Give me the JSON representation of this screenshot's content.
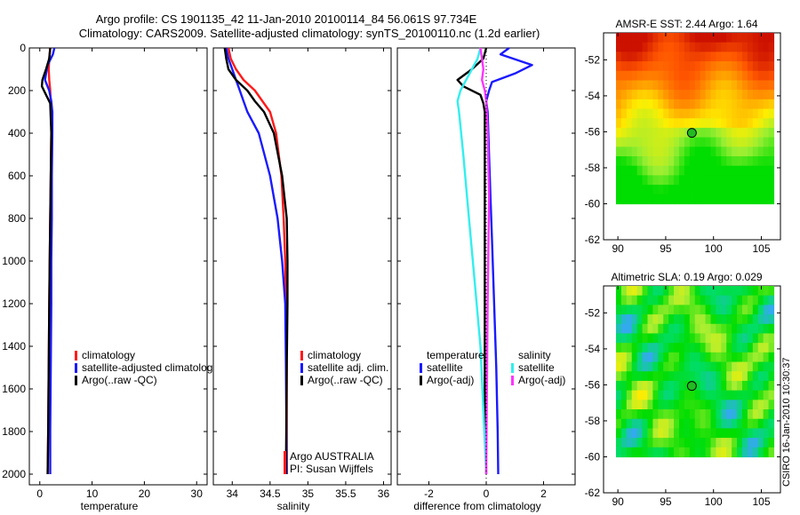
{
  "figure": {
    "title_line1": "Argo profile: CS 1901135_42 11-Jan-2010 20100114_84 56.061S 97.734E",
    "title_line2": "Climatology: CARS2009. Satellite-adjusted climatology: synTS_20100110.nc (1.2d earlier)",
    "side_stamp": "CSIRO 16-Jan-2010 10:30:37",
    "argo_credit_line1": "Argo AUSTRALIA",
    "argo_credit_line2": "PI: Susan Wijffels"
  },
  "colors": {
    "climatology": "#ff1a1a",
    "satellite_adjusted": "#1a1aff",
    "argo": "#000000",
    "salinity_satellite": "#33eeee",
    "salinity_argo": "#ff33ff"
  },
  "chart_data": [
    {
      "type": "line",
      "panel": "temperature",
      "xlabel": "temperature",
      "ylabel": "",
      "xlim": [
        -2,
        32
      ],
      "ylim": [
        2050,
        0
      ],
      "xticks": [
        0,
        10,
        20,
        30
      ],
      "yticks": [
        0,
        200,
        400,
        600,
        800,
        1000,
        1200,
        1400,
        1600,
        1800,
        2000
      ],
      "legend": {
        "placement": "lower-middle",
        "entries": [
          "climatology",
          "satellite-adjusted climatolog",
          "Argo(..raw -QC)"
        ]
      },
      "series": [
        {
          "name": "climatology",
          "color": "#ff1a1a",
          "x": [
            2.0,
            1.8,
            1.7,
            1.8,
            2.0,
            2.1,
            2.2,
            2.2,
            2.1,
            2.0,
            1.9,
            1.8,
            1.7,
            1.6,
            1.5
          ],
          "y": [
            0,
            50,
            100,
            150,
            200,
            250,
            300,
            400,
            600,
            800,
            1000,
            1200,
            1500,
            1800,
            2000
          ]
        },
        {
          "name": "satellite-adjusted climatology",
          "color": "#1a1aff",
          "x": [
            2.8,
            2.5,
            1.5,
            1.0,
            1.8,
            2.2,
            2.4,
            2.4,
            2.3,
            2.3,
            2.2,
            2.2,
            2.1,
            2.0,
            2.0
          ],
          "y": [
            0,
            30,
            80,
            150,
            200,
            250,
            300,
            400,
            600,
            800,
            1000,
            1200,
            1500,
            1800,
            2000
          ]
        },
        {
          "name": "Argo(..raw -QC)",
          "color": "#000000",
          "x": [
            2.0,
            1.8,
            1.2,
            0.5,
            0.4,
            1.2,
            2.0,
            2.2,
            2.1,
            2.0,
            1.9,
            1.8,
            1.7,
            1.6,
            1.5
          ],
          "y": [
            0,
            50,
            100,
            150,
            180,
            220,
            260,
            400,
            600,
            800,
            1000,
            1200,
            1500,
            1800,
            2000
          ]
        }
      ]
    },
    {
      "type": "line",
      "panel": "salinity",
      "xlabel": "salinity",
      "ylabel": "",
      "xlim": [
        33.75,
        36.1
      ],
      "ylim": [
        2050,
        0
      ],
      "xticks": [
        34,
        34.5,
        35,
        35.5,
        36
      ],
      "xticklabels": [
        "34",
        "34.5",
        "35",
        "35.5",
        "36"
      ],
      "legend": {
        "placement": "lower-right",
        "entries": [
          "climatology",
          "satellite adj. clim.",
          "Argo(..raw -QC)"
        ]
      },
      "series": [
        {
          "name": "climatology",
          "color": "#ff1a1a",
          "x": [
            33.95,
            33.98,
            34.05,
            34.15,
            34.3,
            34.4,
            34.5,
            34.58,
            34.65,
            34.68,
            34.7,
            34.71,
            34.72,
            34.72
          ],
          "y": [
            0,
            50,
            100,
            150,
            200,
            250,
            300,
            400,
            600,
            800,
            1000,
            1200,
            1500,
            2000
          ]
        },
        {
          "name": "satellite adj. clim.",
          "color": "#1a1aff",
          "x": [
            33.92,
            33.95,
            34.0,
            34.05,
            34.1,
            34.15,
            34.2,
            34.35,
            34.5,
            34.6,
            34.66,
            34.7,
            34.71,
            34.72
          ],
          "y": [
            0,
            50,
            100,
            150,
            200,
            250,
            300,
            400,
            600,
            800,
            1000,
            1200,
            1500,
            2000
          ]
        },
        {
          "name": "Argo(..raw -QC)",
          "color": "#000000",
          "x": [
            33.9,
            33.92,
            33.95,
            34.05,
            34.2,
            34.3,
            34.42,
            34.55,
            34.66,
            34.72,
            34.73,
            34.73,
            34.72,
            34.71
          ],
          "y": [
            0,
            50,
            100,
            150,
            200,
            250,
            300,
            400,
            600,
            800,
            1000,
            1200,
            1500,
            2000
          ]
        }
      ]
    },
    {
      "type": "line",
      "panel": "difference",
      "xlabel": "difference from climatology",
      "ylabel": "",
      "xlim": [
        -3.1,
        3.1
      ],
      "ylim": [
        2050,
        0
      ],
      "xticks": [
        -2,
        0,
        2
      ],
      "legend": {
        "placement": "lower-middle",
        "headers": [
          "temperature",
          "salinity"
        ],
        "entries": [
          "satellite",
          "Argo(-adj)",
          "satellite",
          "Argo(-adj)"
        ]
      },
      "series": [
        {
          "name": "temperature satellite",
          "color": "#1a1aff",
          "x": [
            0.8,
            0.5,
            1.6,
            1.0,
            0.2,
            0.1,
            0.0,
            0.05,
            0.1,
            0.15,
            0.2,
            0.25,
            0.3,
            0.35,
            0.4,
            0.42
          ],
          "y": [
            0,
            30,
            80,
            120,
            160,
            200,
            250,
            300,
            500,
            700,
            900,
            1100,
            1300,
            1500,
            1800,
            2000
          ]
        },
        {
          "name": "temperature Argo(-adj)",
          "color": "#000000",
          "x": [
            0.0,
            -0.1,
            -0.5,
            -1.0,
            -0.8,
            -0.2,
            -0.1,
            -0.05,
            -0.05,
            -0.05,
            -0.05,
            -0.05,
            0.0
          ],
          "y": [
            0,
            50,
            100,
            150,
            180,
            220,
            260,
            300,
            500,
            800,
            1200,
            1600,
            2000
          ]
        },
        {
          "name": "salinity satellite",
          "color": "#33eeee",
          "x": [
            -0.2,
            -0.3,
            -0.5,
            -0.7,
            -0.9,
            -1.0,
            -0.95,
            -0.8,
            -0.6,
            -0.4,
            -0.2,
            -0.1,
            0.0
          ],
          "y": [
            0,
            50,
            100,
            150,
            200,
            250,
            300,
            500,
            800,
            1100,
            1400,
            1700,
            2000
          ]
        },
        {
          "name": "salinity Argo(-adj)",
          "color": "#ff33ff",
          "x": [
            -0.2,
            -0.15,
            -0.1,
            -0.15,
            -0.05,
            0.0,
            0.05,
            0.1,
            0.05,
            0.0
          ],
          "y": [
            0,
            50,
            100,
            150,
            200,
            250,
            400,
            700,
            1200,
            2000
          ]
        }
      ]
    },
    {
      "type": "heatmap",
      "panel": "sst_map",
      "title": "AMSR-E SST: 2.44 Argo: 1.64",
      "xlim": [
        88.5,
        107
      ],
      "ylim": [
        -62,
        -50.5
      ],
      "xticks": [
        90,
        95,
        100,
        105
      ],
      "yticks": [
        -52,
        -54,
        -56,
        -58,
        -60,
        -62
      ],
      "colormap": [
        "#00dd00",
        "#99ee33",
        "#ffee00",
        "#ff9900",
        "#ff5500",
        "#cc1100"
      ],
      "marker": {
        "lon": 97.734,
        "lat": -56.061,
        "color": "#22bb22"
      }
    },
    {
      "type": "heatmap",
      "panel": "sla_map",
      "title": "Altimetric SLA: 0.19 Argo: 0.029",
      "xlim": [
        88.5,
        107
      ],
      "ylim": [
        -62,
        -50.5
      ],
      "xticks": [
        90,
        95,
        100,
        105
      ],
      "yticks": [
        -52,
        -54,
        -56,
        -58,
        -60,
        -62
      ],
      "colormap": [
        "#33aaee",
        "#00dd66",
        "#00dd00",
        "#aaee33",
        "#ffee00",
        "#ffaa22"
      ],
      "marker": {
        "lon": 97.734,
        "lat": -56.061,
        "color": "#22bb22"
      }
    }
  ]
}
